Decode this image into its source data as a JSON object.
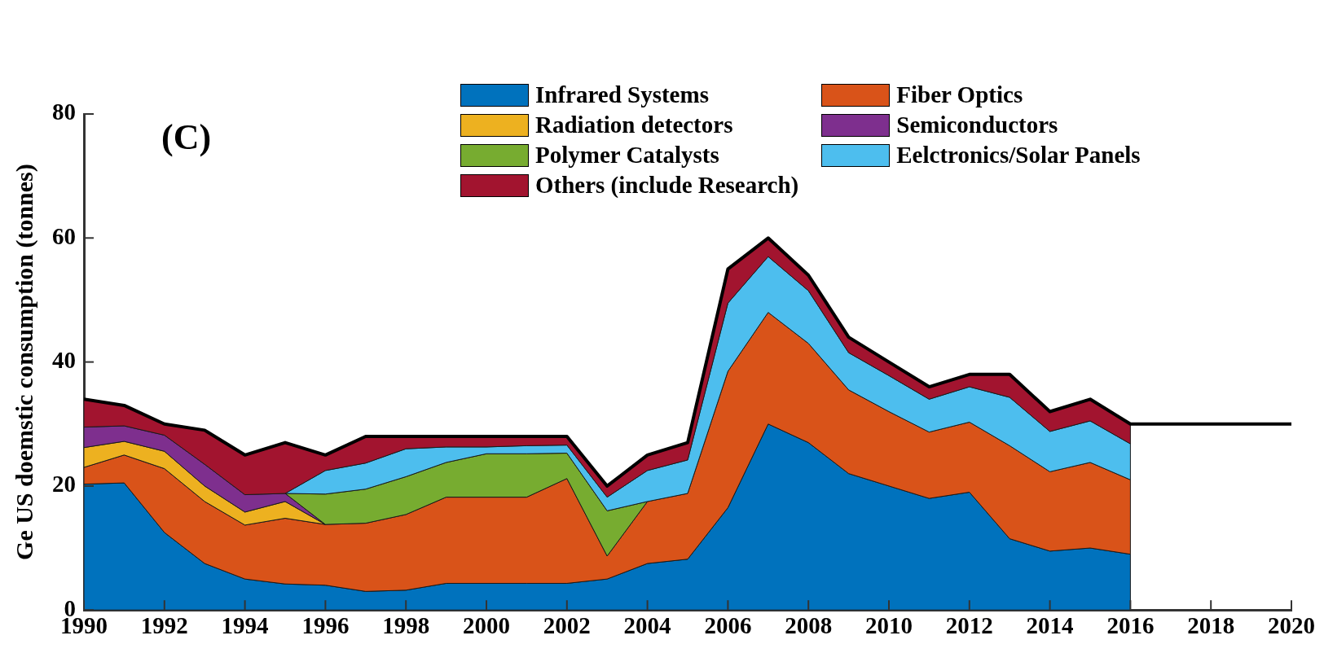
{
  "chart_data": {
    "type": "area",
    "ylabel": "Ge US doemstic consumption (tonnes)",
    "annotations": [
      "(C)"
    ],
    "stacked": true,
    "legend": "top",
    "grid": false,
    "x": [
      1990,
      1991,
      1992,
      1993,
      1994,
      1995,
      1996,
      1997,
      1998,
      1999,
      2000,
      2001,
      2002,
      2003,
      2004,
      2005,
      2006,
      2007,
      2008,
      2009,
      2010,
      2011,
      2012,
      2013,
      2014,
      2015,
      2016
    ],
    "xlim": [
      1990,
      2020
    ],
    "xticks": [
      1990,
      1992,
      1994,
      1996,
      1998,
      2000,
      2002,
      2004,
      2006,
      2008,
      2010,
      2012,
      2014,
      2016,
      2018,
      2020
    ],
    "ylim": [
      0,
      80
    ],
    "yticks": [
      0,
      20,
      40,
      60,
      80
    ],
    "series": [
      {
        "name": "Infrared Systems",
        "color": "#0072bd",
        "values": [
          20.3,
          20.5,
          12.5,
          7.5,
          5,
          4.2,
          4,
          3,
          3.2,
          4.3,
          4.3,
          4.3,
          4.3,
          5,
          7.5,
          8.2,
          16.5,
          30,
          27,
          22,
          20,
          18,
          19,
          11.5,
          9.5,
          10,
          9
        ]
      },
      {
        "name": "Fiber Optics",
        "color": "#d95319",
        "values": [
          2.7,
          4.5,
          10.3,
          10,
          8.7,
          10.6,
          9.8,
          11,
          12.2,
          13.9,
          13.9,
          13.9,
          16.9,
          3.7,
          10,
          10.6,
          22,
          18,
          16,
          13.5,
          12,
          10.7,
          11.3,
          15,
          12.8,
          13.8,
          12
        ]
      },
      {
        "name": "Radiation detectors",
        "color": "#edb120",
        "values": [
          3.2,
          2.2,
          2.8,
          2.5,
          2.1,
          2.7,
          0,
          null,
          null,
          null,
          null,
          null,
          null,
          null,
          null,
          null,
          null,
          null,
          null,
          null,
          null,
          null,
          null,
          null,
          null,
          null,
          null
        ]
      },
      {
        "name": "Semiconductors",
        "color": "#7e2f8e",
        "values": [
          3.3,
          2.5,
          2.6,
          3.5,
          2.8,
          1.3,
          0,
          null,
          null,
          null,
          null,
          null,
          null,
          null,
          null,
          null,
          null,
          null,
          null,
          null,
          null,
          null,
          null,
          null,
          null,
          null,
          null
        ]
      },
      {
        "name": "Polymer Catalysts",
        "color": "#77ac30",
        "values": [
          null,
          null,
          null,
          null,
          null,
          0,
          4.9,
          5.5,
          6.1,
          5.6,
          7,
          7,
          4.1,
          7.3,
          0,
          null,
          null,
          null,
          null,
          null,
          null,
          null,
          null,
          null,
          null,
          null,
          null
        ]
      },
      {
        "name": "Eelctronics/Solar Panels",
        "color": "#4dbeee",
        "values": [
          null,
          null,
          null,
          null,
          null,
          0,
          3.8,
          4.2,
          4.5,
          2.5,
          1.1,
          1.3,
          1.3,
          2.2,
          5,
          5.4,
          11,
          9,
          8.5,
          6,
          5.8,
          5.3,
          5.7,
          7.8,
          6.5,
          6.7,
          5.8
        ]
      },
      {
        "name": "Others (include Research)",
        "color": "#a2142f",
        "values": [
          4.5,
          3.3,
          1.8,
          5.5,
          6.4,
          8.2,
          2.5,
          4.3,
          2,
          1.7,
          1.7,
          1.5,
          1.4,
          1.8,
          2.5,
          2.8,
          5.5,
          3,
          2.5,
          2.5,
          2.2,
          2,
          2,
          3.7,
          3.2,
          3.5,
          3.2
        ]
      },
      {
        "type": "line",
        "color": "#000000",
        "x": [
          1990,
          1991,
          1992,
          1993,
          1994,
          1995,
          1996,
          1997,
          1998,
          1999,
          2000,
          2001,
          2002,
          2003,
          2004,
          2005,
          2006,
          2007,
          2008,
          2009,
          2010,
          2011,
          2012,
          2013,
          2014,
          2015,
          2016,
          2020
        ],
        "values": [
          34,
          33,
          30,
          29,
          25,
          27,
          25,
          28,
          28,
          28,
          28,
          28,
          28,
          20,
          25,
          27,
          55,
          60,
          54,
          44,
          40,
          36,
          38,
          38,
          32,
          34,
          30,
          30
        ]
      }
    ]
  }
}
